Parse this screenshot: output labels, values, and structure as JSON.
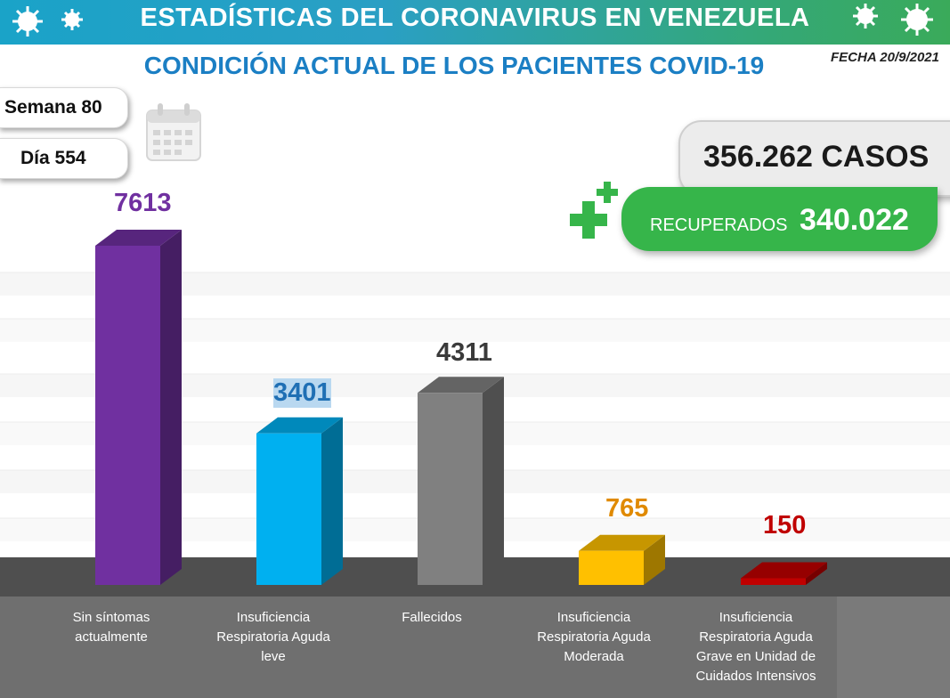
{
  "header": {
    "title": "ESTADÍSTICAS DEL CORONAVIRUS EN VENEZUELA",
    "subtitle": "CONDICIÓN ACTUAL DE LOS PACIENTES COVID-19",
    "date": "FECHA 20/9/2021"
  },
  "info": {
    "week": "Semana 80",
    "day": "Día 554",
    "cases": "356.262 CASOS",
    "recovered_label": "RECUPERADOS",
    "recovered_value": "340.022"
  },
  "icons": [
    "virus-icon",
    "calendar-icon",
    "plus-icon"
  ],
  "colors": {
    "banner_start": "#1aa3c8",
    "banner_end": "#3aaa5a",
    "subtitle": "#1b7fc4",
    "recovered": "#36b54a",
    "floor": "#5a5a5a"
  },
  "chart_data": {
    "type": "bar",
    "categories": [
      "Sin síntomas actualmente",
      "Insuficiencia Respiratoria Aguda leve",
      "Fallecidos",
      "Insuficiencia Respiratoria Aguda Moderada",
      "Insuficiencia Respiratoria Aguda Grave en Unidad de Cuidados Intensivos"
    ],
    "category_lines": [
      [
        "Sin síntomas",
        "actualmente"
      ],
      [
        "Insuficiencia",
        "Respiratoria Aguda",
        "leve"
      ],
      [
        "Fallecidos"
      ],
      [
        "Insuficiencia",
        "Respiratoria Aguda",
        "Moderada"
      ],
      [
        "Insuficiencia",
        "Respiratoria Aguda",
        "Grave en Unidad de",
        "Cuidados Intensivos"
      ]
    ],
    "values": [
      7613,
      3401,
      4311,
      765,
      150
    ],
    "value_labels": [
      "7613",
      "3401",
      "4311",
      "765",
      "150"
    ],
    "colors": [
      "#7030a0",
      "#00b0f0",
      "#808080",
      "#ffc000",
      "#c00000"
    ],
    "label_colors": [
      "#7030a0",
      "#1f6fb4",
      "#3a3a3a",
      "#e08a00",
      "#c00000"
    ],
    "title": "",
    "xlabel": "",
    "ylabel": "",
    "grid": true,
    "legend": "none",
    "bar_style": "3d"
  }
}
